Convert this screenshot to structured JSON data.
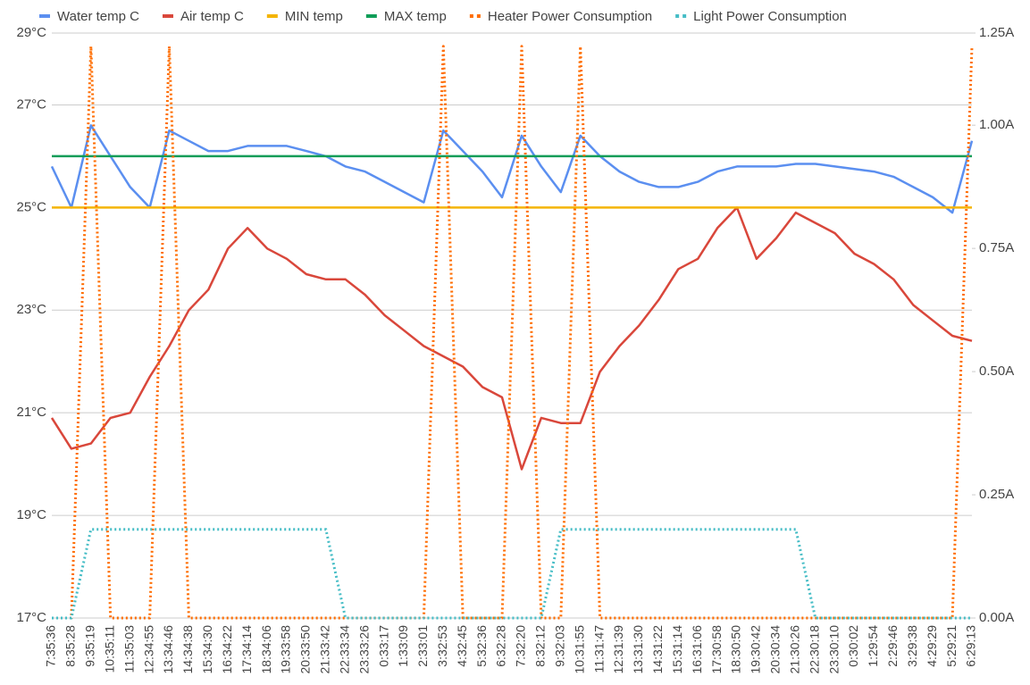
{
  "chart_data": {
    "type": "line",
    "categories": [
      "7:35:36",
      "8:35:28",
      "9:35:19",
      "10:35:11",
      "11:35:03",
      "12:34:55",
      "13:34:46",
      "14:34:38",
      "15:34:30",
      "16:34:22",
      "17:34:14",
      "18:34:06",
      "19:33:58",
      "20:33:50",
      "21:33:42",
      "22:33:34",
      "23:33:26",
      "0:33:17",
      "1:33:09",
      "2:33:01",
      "3:32:53",
      "4:32:45",
      "5:32:36",
      "6:32:28",
      "7:32:20",
      "8:32:12",
      "9:32:03",
      "10:31:55",
      "11:31:47",
      "12:31:39",
      "13:31:30",
      "14:31:22",
      "15:31:14",
      "16:31:06",
      "17:30:58",
      "18:30:50",
      "19:30:42",
      "20:30:34",
      "21:30:26",
      "22:30:18",
      "23:30:10",
      "0:30:02",
      "1:29:54",
      "2:29:46",
      "3:29:38",
      "4:29:29",
      "5:29:21",
      "6:29:13"
    ],
    "series": [
      {
        "name": "Water temp C",
        "color": "#5b8ff0",
        "values": [
          25.8,
          25.0,
          26.6,
          26.0,
          25.4,
          25.0,
          26.5,
          26.3,
          26.1,
          26.1,
          26.2,
          26.2,
          26.2,
          26.1,
          26.0,
          25.8,
          25.7,
          25.5,
          25.3,
          25.1,
          26.5,
          26.1,
          25.7,
          25.2,
          26.4,
          25.8,
          25.3,
          26.4,
          26.0,
          25.7,
          25.5,
          25.4,
          25.4,
          25.5,
          25.7,
          25.8,
          25.8,
          25.8,
          25.85,
          25.85,
          25.8,
          25.75,
          25.7,
          25.6,
          25.4,
          25.2,
          24.9,
          26.3
        ]
      },
      {
        "name": "Air temp C",
        "color": "#d9473b",
        "values": [
          20.9,
          20.3,
          20.4,
          20.9,
          21.0,
          21.7,
          22.3,
          23.0,
          23.4,
          24.2,
          24.6,
          24.2,
          24.0,
          23.7,
          23.6,
          23.6,
          23.3,
          22.9,
          22.6,
          22.3,
          22.1,
          21.9,
          21.5,
          21.3,
          19.9,
          20.9,
          20.8,
          20.8,
          21.8,
          22.3,
          22.7,
          23.2,
          23.8,
          24.0,
          24.6,
          25.0,
          24.0,
          24.4,
          24.9,
          24.7,
          24.5,
          24.1,
          23.9,
          23.6,
          23.1,
          22.8,
          22.5,
          22.4
        ]
      },
      {
        "name": "MIN temp",
        "color": "#f4b400",
        "values": [
          25,
          25,
          25,
          25,
          25,
          25,
          25,
          25,
          25,
          25,
          25,
          25,
          25,
          25,
          25,
          25,
          25,
          25,
          25,
          25,
          25,
          25,
          25,
          25,
          25,
          25,
          25,
          25,
          25,
          25,
          25,
          25,
          25,
          25,
          25,
          25,
          25,
          25,
          25,
          25,
          25,
          25,
          25,
          25,
          25,
          25,
          25,
          25
        ]
      },
      {
        "name": "MAX temp",
        "color": "#0f9d58",
        "values": [
          26,
          26,
          26,
          26,
          26,
          26,
          26,
          26,
          26,
          26,
          26,
          26,
          26,
          26,
          26,
          26,
          26,
          26,
          26,
          26,
          26,
          26,
          26,
          26,
          26,
          26,
          26,
          26,
          26,
          26,
          26,
          26,
          26,
          26,
          26,
          26,
          26,
          26,
          26,
          26,
          26,
          26,
          26,
          26,
          26,
          26,
          26,
          26
        ]
      },
      {
        "name": "Heater Power Consumption",
        "color": "#ff6d01",
        "dashed": true,
        "axis": "y2",
        "values": [
          0,
          0,
          1.16,
          0,
          0,
          0,
          1.16,
          0,
          0,
          0,
          0,
          0,
          0,
          0,
          0,
          0,
          0,
          0,
          0,
          0,
          1.16,
          0,
          0,
          0,
          1.16,
          0,
          0,
          1.16,
          0,
          0,
          0,
          0,
          0,
          0,
          0,
          0,
          0,
          0,
          0,
          0,
          0,
          0,
          0,
          0,
          0,
          0,
          0,
          1.16
        ]
      },
      {
        "name": "Light Power Consumption",
        "color": "#46bdc6",
        "dashed": true,
        "axis": "y2",
        "values": [
          0,
          0,
          0.18,
          0.18,
          0.18,
          0.18,
          0.18,
          0.18,
          0.18,
          0.18,
          0.18,
          0.18,
          0.18,
          0.18,
          0.18,
          0,
          0,
          0,
          0,
          0,
          0,
          0,
          0,
          0,
          0,
          0,
          0.18,
          0.18,
          0.18,
          0.18,
          0.18,
          0.18,
          0.18,
          0.18,
          0.18,
          0.18,
          0.18,
          0.18,
          0.18,
          0,
          0,
          0,
          0,
          0,
          0,
          0,
          0,
          0
        ]
      }
    ],
    "ylim": [
      17,
      28.4
    ],
    "yticks": [
      {
        "value": 17,
        "label": "17°C"
      },
      {
        "value": 19,
        "label": "19°C"
      },
      {
        "value": 21,
        "label": "21°C"
      },
      {
        "value": 23,
        "label": "23°C"
      },
      {
        "value": 25,
        "label": "25°C"
      },
      {
        "value": 27,
        "label": "27°C"
      },
      {
        "value": 29,
        "label": "29°C"
      }
    ],
    "y2lim": [
      0,
      1.187
    ],
    "y2ticks": [
      {
        "value": 0,
        "label": "0.00A"
      },
      {
        "value": 0.25,
        "label": "0.25A"
      },
      {
        "value": 0.5,
        "label": "0.50A"
      },
      {
        "value": 0.75,
        "label": "0.75A"
      },
      {
        "value": 1,
        "label": "1.00A"
      },
      {
        "value": 1.25,
        "label": "1.25A"
      }
    ],
    "grid": true,
    "legend": "top"
  }
}
